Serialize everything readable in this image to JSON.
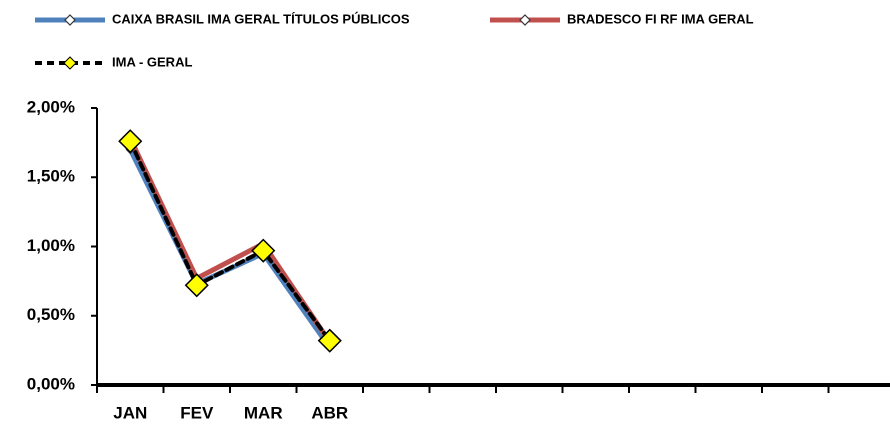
{
  "chart_data": {
    "type": "line",
    "categories": [
      "JAN",
      "FEV",
      "MAR",
      "ABR",
      null,
      null,
      null,
      null,
      null,
      null,
      null,
      null
    ],
    "series": [
      {
        "name": "CAIXA BRASIL IMA GERAL TÍTULOS PÚBLICOS",
        "color": "#4f81bd",
        "values": [
          1.7,
          0.73,
          0.95,
          0.27,
          null,
          null,
          null,
          null,
          null,
          null,
          null,
          null
        ]
      },
      {
        "name": "BRADESCO FI RF IMA GERAL",
        "color": "#c0504d",
        "values": [
          1.78,
          0.77,
          1.02,
          0.31,
          null,
          null,
          null,
          null,
          null,
          null,
          null,
          null
        ]
      },
      {
        "name": "IMA - GERAL",
        "color": "#000000",
        "values": [
          1.76,
          0.72,
          0.97,
          0.32,
          null,
          null,
          null,
          null,
          null,
          null,
          null,
          null
        ]
      }
    ],
    "ylim": [
      0,
      2
    ],
    "yticks": [
      {
        "value": 0,
        "label": "0,00%"
      },
      {
        "value": 0.5,
        "label": "0,50%"
      },
      {
        "value": 1,
        "label": "1,00%"
      },
      {
        "value": 1.5,
        "label": "1,50%"
      },
      {
        "value": 2,
        "label": "2,00%"
      }
    ],
    "grid": false
  }
}
